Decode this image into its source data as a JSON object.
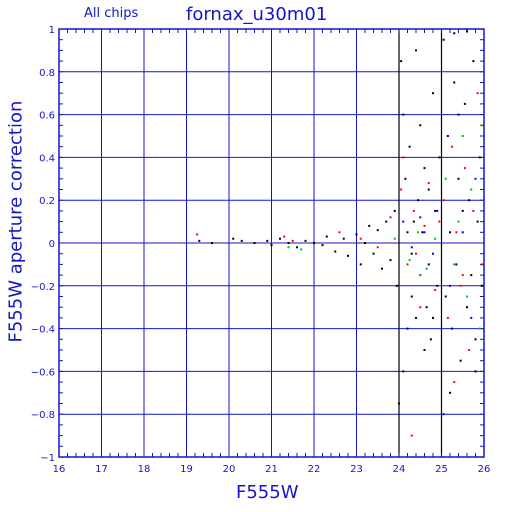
{
  "chart_data": {
    "type": "scatter",
    "title": "fornax_u30m01",
    "subtitle": "All chips",
    "xlabel": "F555W",
    "ylabel": "F555W aperture correction",
    "xlim": [
      16,
      26
    ],
    "ylim": [
      -1,
      1
    ],
    "grid": true,
    "xticks": [
      16,
      17,
      18,
      19,
      20,
      21,
      22,
      23,
      24,
      25,
      26
    ],
    "yticks": [
      -1,
      -0.8,
      -0.6,
      -0.4,
      -0.2,
      0,
      0.2,
      0.4,
      0.6,
      0.8,
      1
    ],
    "xtick_labels": [
      "16",
      "17",
      "18",
      "19",
      "20",
      "21",
      "22",
      "23",
      "24",
      "25",
      "26"
    ],
    "ytick_labels": [
      "−1",
      "−0.8",
      "−0.6",
      "−0.4",
      "−0.2",
      "0",
      "0.2",
      "0.4",
      "0.6",
      "0.8",
      "1"
    ],
    "highlight_lines_x": [
      24,
      25
    ],
    "series": [
      {
        "color": "#000000",
        "points": [
          [
            19.3,
            0.01
          ],
          [
            19.6,
            0.0
          ],
          [
            20.1,
            0.02
          ],
          [
            20.3,
            0.01
          ],
          [
            20.6,
            0.0
          ],
          [
            20.9,
            0.01
          ],
          [
            21.0,
            -0.01
          ],
          [
            21.2,
            0.02
          ],
          [
            21.4,
            0.0
          ],
          [
            21.6,
            -0.02
          ],
          [
            21.8,
            0.01
          ],
          [
            22.0,
            0.0
          ],
          [
            22.2,
            -0.01
          ],
          [
            22.3,
            0.03
          ],
          [
            22.5,
            -0.04
          ],
          [
            22.7,
            0.02
          ],
          [
            22.8,
            -0.06
          ],
          [
            23.0,
            0.04
          ],
          [
            23.1,
            -0.1
          ],
          [
            23.2,
            0.0
          ],
          [
            23.3,
            0.08
          ],
          [
            23.4,
            -0.05
          ],
          [
            23.5,
            0.06
          ],
          [
            23.6,
            -0.12
          ],
          [
            23.7,
            0.1
          ],
          [
            23.8,
            -0.08
          ],
          [
            23.9,
            0.15
          ],
          [
            23.95,
            -0.2
          ],
          [
            24.05,
            0.85
          ],
          [
            24.1,
            0.6
          ],
          [
            24.15,
            0.3
          ],
          [
            24.2,
            -0.4
          ],
          [
            24.25,
            0.45
          ],
          [
            24.3,
            -0.25
          ],
          [
            24.35,
            0.1
          ],
          [
            24.4,
            -0.35
          ],
          [
            24.45,
            0.2
          ],
          [
            24.5,
            -0.15
          ],
          [
            24.55,
            0.05
          ],
          [
            24.6,
            0.35
          ],
          [
            24.65,
            -0.3
          ],
          [
            24.7,
            0.25
          ],
          [
            24.75,
            -0.45
          ],
          [
            24.8,
            0.7
          ],
          [
            24.85,
            0.15
          ],
          [
            24.9,
            -0.2
          ],
          [
            24.95,
            0.4
          ],
          [
            24.3,
            -0.05
          ],
          [
            24.5,
            0.55
          ],
          [
            24.7,
            -0.1
          ],
          [
            24.1,
            -0.6
          ],
          [
            24.4,
            0.9
          ],
          [
            24.6,
            -0.5
          ],
          [
            24.2,
            0.05
          ],
          [
            24.8,
            -0.35
          ],
          [
            24.0,
            -0.75
          ],
          [
            25.05,
            0.95
          ],
          [
            25.1,
            -0.25
          ],
          [
            25.15,
            0.5
          ],
          [
            25.2,
            0.05
          ],
          [
            25.25,
            -0.4
          ],
          [
            25.3,
            0.75
          ],
          [
            25.35,
            -0.1
          ],
          [
            25.4,
            0.3
          ],
          [
            25.45,
            -0.55
          ],
          [
            25.5,
            0.15
          ],
          [
            25.55,
            0.65
          ],
          [
            25.6,
            -0.3
          ],
          [
            25.65,
            0.2
          ],
          [
            25.7,
            -0.15
          ],
          [
            25.75,
            0.85
          ],
          [
            25.8,
            -0.45
          ],
          [
            25.85,
            0.1
          ],
          [
            25.9,
            0.4
          ],
          [
            25.95,
            -0.2
          ],
          [
            25.3,
            0.98
          ],
          [
            25.6,
            0.99
          ],
          [
            25.2,
            -0.7
          ],
          [
            25.8,
            -0.6
          ],
          [
            25.4,
            0.6
          ]
        ]
      },
      {
        "color": "#ff0000",
        "points": [
          [
            19.25,
            0.04
          ],
          [
            21.3,
            0.03
          ],
          [
            21.5,
            0.01
          ],
          [
            22.6,
            0.05
          ],
          [
            23.1,
            0.02
          ],
          [
            23.5,
            -0.02
          ],
          [
            23.8,
            0.12
          ],
          [
            24.05,
            0.25
          ],
          [
            24.2,
            -0.1
          ],
          [
            24.35,
            0.15
          ],
          [
            24.5,
            -0.3
          ],
          [
            24.6,
            0.08
          ],
          [
            24.7,
            0.28
          ],
          [
            24.85,
            -0.22
          ],
          [
            24.95,
            0.1
          ],
          [
            24.4,
            -0.05
          ],
          [
            24.1,
            0.4
          ],
          [
            24.3,
            -0.9
          ],
          [
            25.05,
            0.2
          ],
          [
            25.15,
            -0.35
          ],
          [
            25.25,
            0.45
          ],
          [
            25.35,
            0.05
          ],
          [
            25.45,
            -0.2
          ],
          [
            25.55,
            0.35
          ],
          [
            25.65,
            -0.5
          ],
          [
            25.75,
            0.15
          ],
          [
            25.85,
            0.7
          ],
          [
            25.95,
            -0.1
          ],
          [
            25.5,
            -0.15
          ],
          [
            25.3,
            -0.65
          ]
        ]
      },
      {
        "color": "#00c000",
        "points": [
          [
            21.4,
            -0.02
          ],
          [
            21.7,
            -0.03
          ],
          [
            23.9,
            0.02
          ],
          [
            24.25,
            -0.08
          ],
          [
            24.45,
            0.05
          ],
          [
            24.65,
            -0.12
          ],
          [
            24.85,
            0.02
          ],
          [
            24.5,
            -0.15
          ],
          [
            25.1,
            0.3
          ],
          [
            25.3,
            -0.1
          ],
          [
            25.5,
            0.5
          ],
          [
            25.7,
            0.25
          ],
          [
            25.9,
            -0.4
          ],
          [
            25.95,
            0.55
          ],
          [
            25.4,
            0.1
          ],
          [
            25.6,
            -0.25
          ]
        ]
      },
      {
        "color": "#0000ff",
        "points": [
          [
            24.1,
            0.1
          ],
          [
            24.3,
            -0.02
          ],
          [
            24.5,
            0.12
          ],
          [
            24.6,
            0.05
          ],
          [
            24.8,
            -0.05
          ],
          [
            24.9,
            0.15
          ],
          [
            25.05,
            -0.8
          ],
          [
            25.2,
            -0.2
          ],
          [
            25.5,
            0.05
          ],
          [
            25.7,
            -0.35
          ],
          [
            25.8,
            0.3
          ]
        ]
      }
    ]
  }
}
